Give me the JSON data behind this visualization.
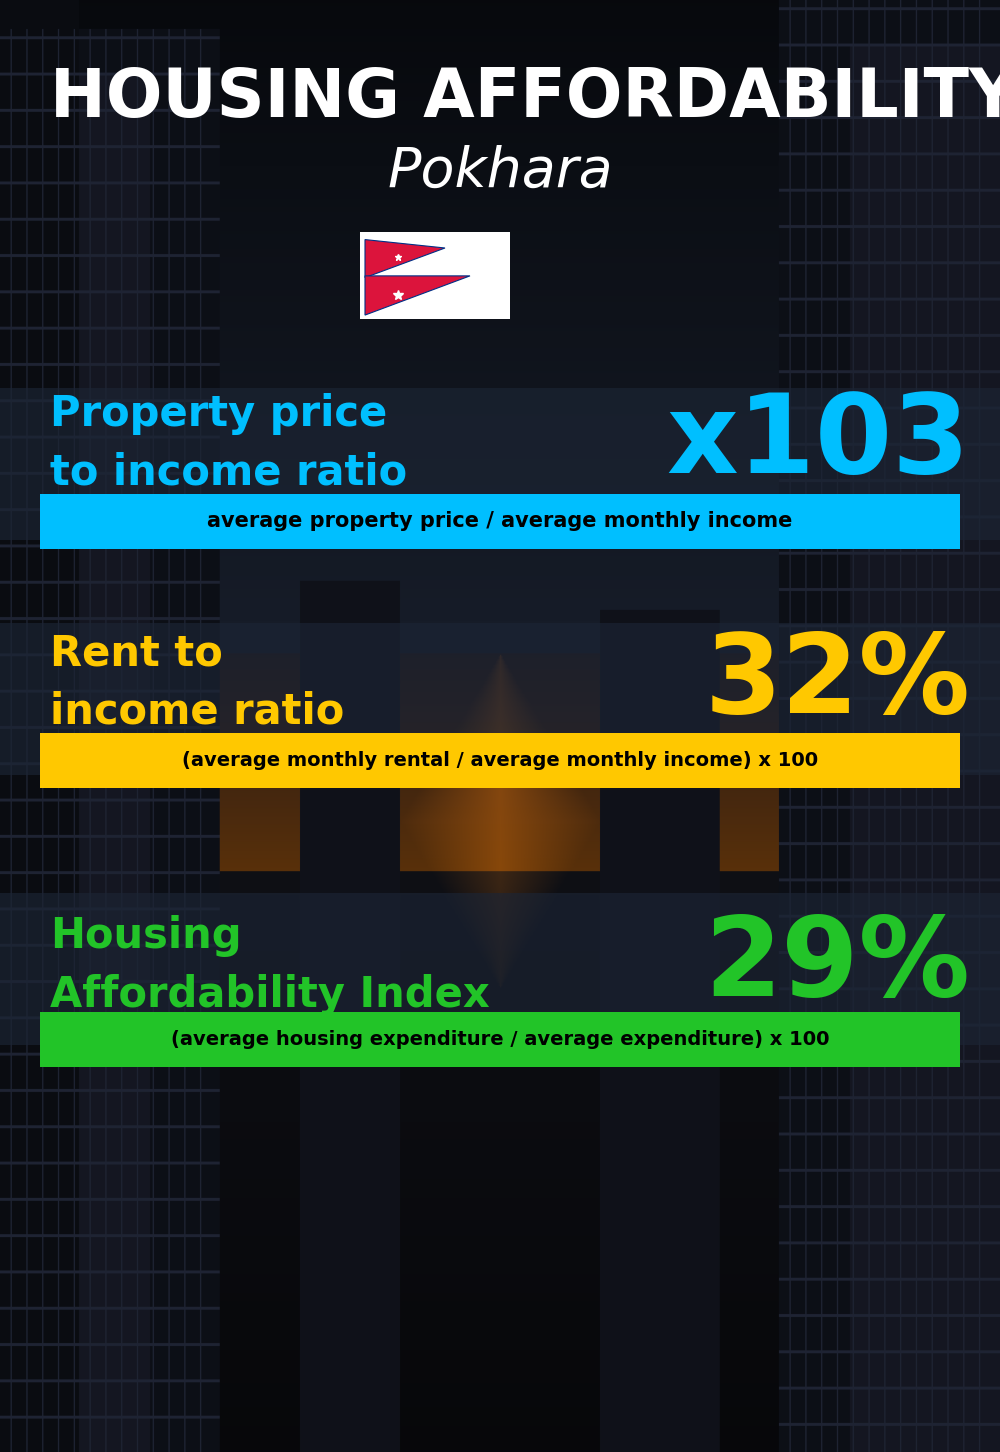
{
  "title_line1": "HOUSING AFFORDABILITY",
  "title_line2": "Pokhara",
  "bg_color": "#080c14",
  "section1_label": "Property price\nto income ratio",
  "section1_value": "x103",
  "section1_label_color": "#00bfff",
  "section1_value_color": "#00bfff",
  "section1_formula": "average property price / average monthly income",
  "section1_formula_bg": "#00bfff",
  "section2_label": "Rent to\nincome ratio",
  "section2_value": "32%",
  "section2_label_color": "#ffc800",
  "section2_value_color": "#ffc800",
  "section2_formula": "(average monthly rental / average monthly income) x 100",
  "section2_formula_bg": "#ffc800",
  "section3_label": "Housing\nAffordability Index",
  "section3_value": "29%",
  "section3_label_color": "#22c428",
  "section3_value_color": "#22c428",
  "section3_formula": "(average housing expenditure / average expenditure) x 100",
  "section3_formula_bg": "#22c428",
  "overlay_color": "#1c2535",
  "overlay_alpha": 0.65
}
